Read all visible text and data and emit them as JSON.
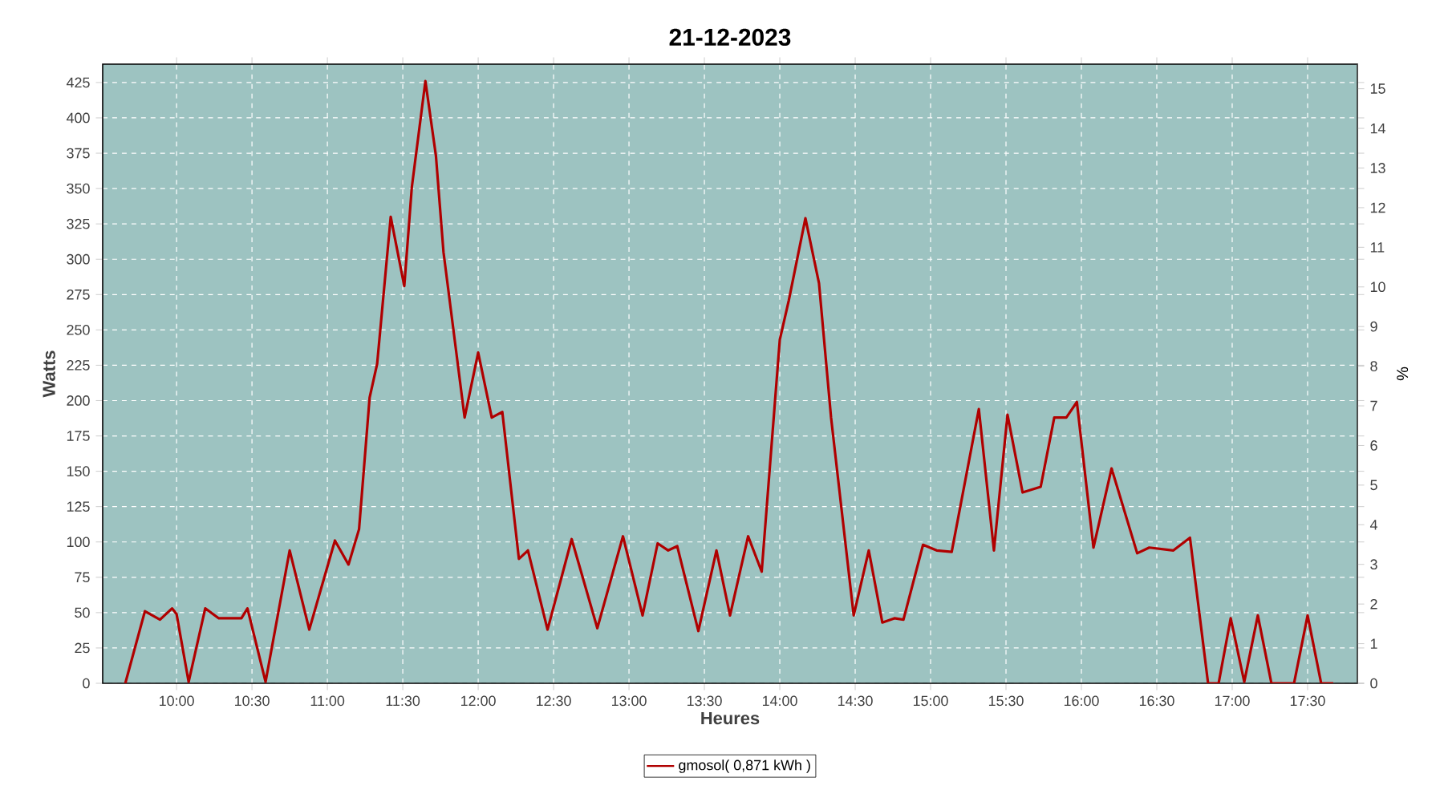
{
  "chart_data": {
    "type": "line",
    "title": "21-12-2023",
    "xlabel": "Heures",
    "ylabel": "Watts",
    "y2label": "%",
    "xlim": [
      9.51,
      17.83
    ],
    "ylim": [
      0,
      438
    ],
    "y2lim": [
      0,
      15.62
    ],
    "xticks": [
      {
        "value": 10,
        "label": "10:00"
      },
      {
        "value": 10.5,
        "label": "10:30"
      },
      {
        "value": 11,
        "label": "11:00"
      },
      {
        "value": 11.5,
        "label": "11:30"
      },
      {
        "value": 12,
        "label": "12:00"
      },
      {
        "value": 12.5,
        "label": "12:30"
      },
      {
        "value": 13,
        "label": "13:00"
      },
      {
        "value": 13.5,
        "label": "13:30"
      },
      {
        "value": 14,
        "label": "14:00"
      },
      {
        "value": 14.5,
        "label": "14:30"
      },
      {
        "value": 15,
        "label": "15:00"
      },
      {
        "value": 15.5,
        "label": "15:30"
      },
      {
        "value": 16,
        "label": "16:00"
      },
      {
        "value": 16.5,
        "label": "16:30"
      },
      {
        "value": 17,
        "label": "17:00"
      },
      {
        "value": 17.5,
        "label": "17:30"
      }
    ],
    "yticks": [
      0,
      25,
      50,
      75,
      100,
      125,
      150,
      175,
      200,
      225,
      250,
      275,
      300,
      325,
      350,
      375,
      400,
      425
    ],
    "y2ticks": [
      0,
      1,
      2,
      3,
      4,
      5,
      6,
      7,
      8,
      9,
      10,
      11,
      12,
      13,
      14,
      15
    ],
    "grid": true,
    "legend": "bottom",
    "marker": "none",
    "line_style": "solid",
    "series": [
      {
        "name": "gmosol( 0,871 kWh )",
        "color": "#b00000",
        "x": [
          9.66,
          9.79,
          9.89,
          9.97,
          10.0,
          10.08,
          10.19,
          10.28,
          10.43,
          10.47,
          10.59,
          10.75,
          10.88,
          11.05,
          11.14,
          11.21,
          11.28,
          11.33,
          11.42,
          11.51,
          11.56,
          11.65,
          11.72,
          11.77,
          11.91,
          12.0,
          12.09,
          12.16,
          12.27,
          12.33,
          12.46,
          12.62,
          12.79,
          12.96,
          13.09,
          13.19,
          13.26,
          13.32,
          13.46,
          13.58,
          13.67,
          13.79,
          13.88,
          14.0,
          14.06,
          14.17,
          14.26,
          14.34,
          14.49,
          14.59,
          14.68,
          14.76,
          14.82,
          14.95,
          15.04,
          15.14,
          15.32,
          15.42,
          15.51,
          15.61,
          15.73,
          15.82,
          15.9,
          15.97,
          16.08,
          16.2,
          16.37,
          16.45,
          16.61,
          16.72,
          16.84,
          16.91,
          16.99,
          17.08,
          17.17,
          17.26,
          17.41,
          17.5,
          17.59,
          17.67
        ],
        "values": [
          0,
          51,
          45,
          53,
          49,
          1,
          53,
          46,
          46,
          53,
          1,
          94,
          38,
          101,
          84,
          109,
          202,
          226,
          330,
          281,
          351,
          426,
          373,
          305,
          188,
          234,
          188,
          192,
          88,
          94,
          38,
          102,
          39,
          104,
          48,
          99,
          94,
          97,
          37,
          94,
          48,
          104,
          79,
          243,
          271,
          329,
          283,
          188,
          48,
          94,
          43,
          46,
          45,
          98,
          94,
          93,
          194,
          94,
          190,
          135,
          139,
          188,
          188,
          199,
          96,
          152,
          92,
          96,
          94,
          103,
          0,
          0,
          46,
          1,
          48,
          0,
          0,
          48,
          0,
          0
        ]
      }
    ]
  }
}
